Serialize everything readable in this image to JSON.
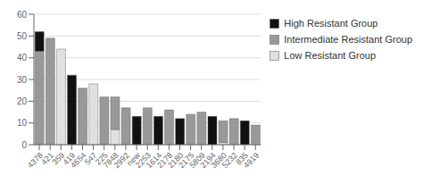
{
  "chart_data": {
    "type": "bar",
    "stacked": true,
    "grid": true,
    "legend": "right",
    "categories": [
      "4378",
      "421",
      "359",
      "419",
      "4654",
      "547",
      "225",
      "7848",
      "2992",
      "new",
      "2253",
      "1614",
      "2178",
      "2180",
      "2175",
      "5809",
      "2194",
      "3680",
      "5232",
      "835",
      "4919"
    ],
    "series": [
      {
        "name": "High Resistant Group",
        "color": "#111111",
        "values": [
          9,
          0,
          0,
          32,
          0,
          0,
          0,
          0,
          0,
          13,
          0,
          13,
          0,
          12,
          0,
          0,
          13,
          0,
          0,
          11,
          0
        ]
      },
      {
        "name": "Intermediate Resistant Group",
        "color": "#999999",
        "values": [
          43,
          49,
          0,
          0,
          26,
          0,
          22,
          15,
          17,
          0,
          17,
          0,
          16,
          0,
          14,
          15,
          0,
          10,
          12,
          0,
          9
        ]
      },
      {
        "name": "Low Resistant Group",
        "color": "#e0e0e0",
        "values": [
          0,
          0,
          44,
          0,
          0,
          28,
          0,
          7,
          0,
          0,
          0,
          0,
          0,
          0,
          0,
          0,
          0,
          1,
          0,
          0,
          0
        ]
      }
    ],
    "ylim": [
      0,
      60
    ],
    "yticks": [
      0,
      10,
      20,
      30,
      40,
      50,
      60
    ]
  }
}
